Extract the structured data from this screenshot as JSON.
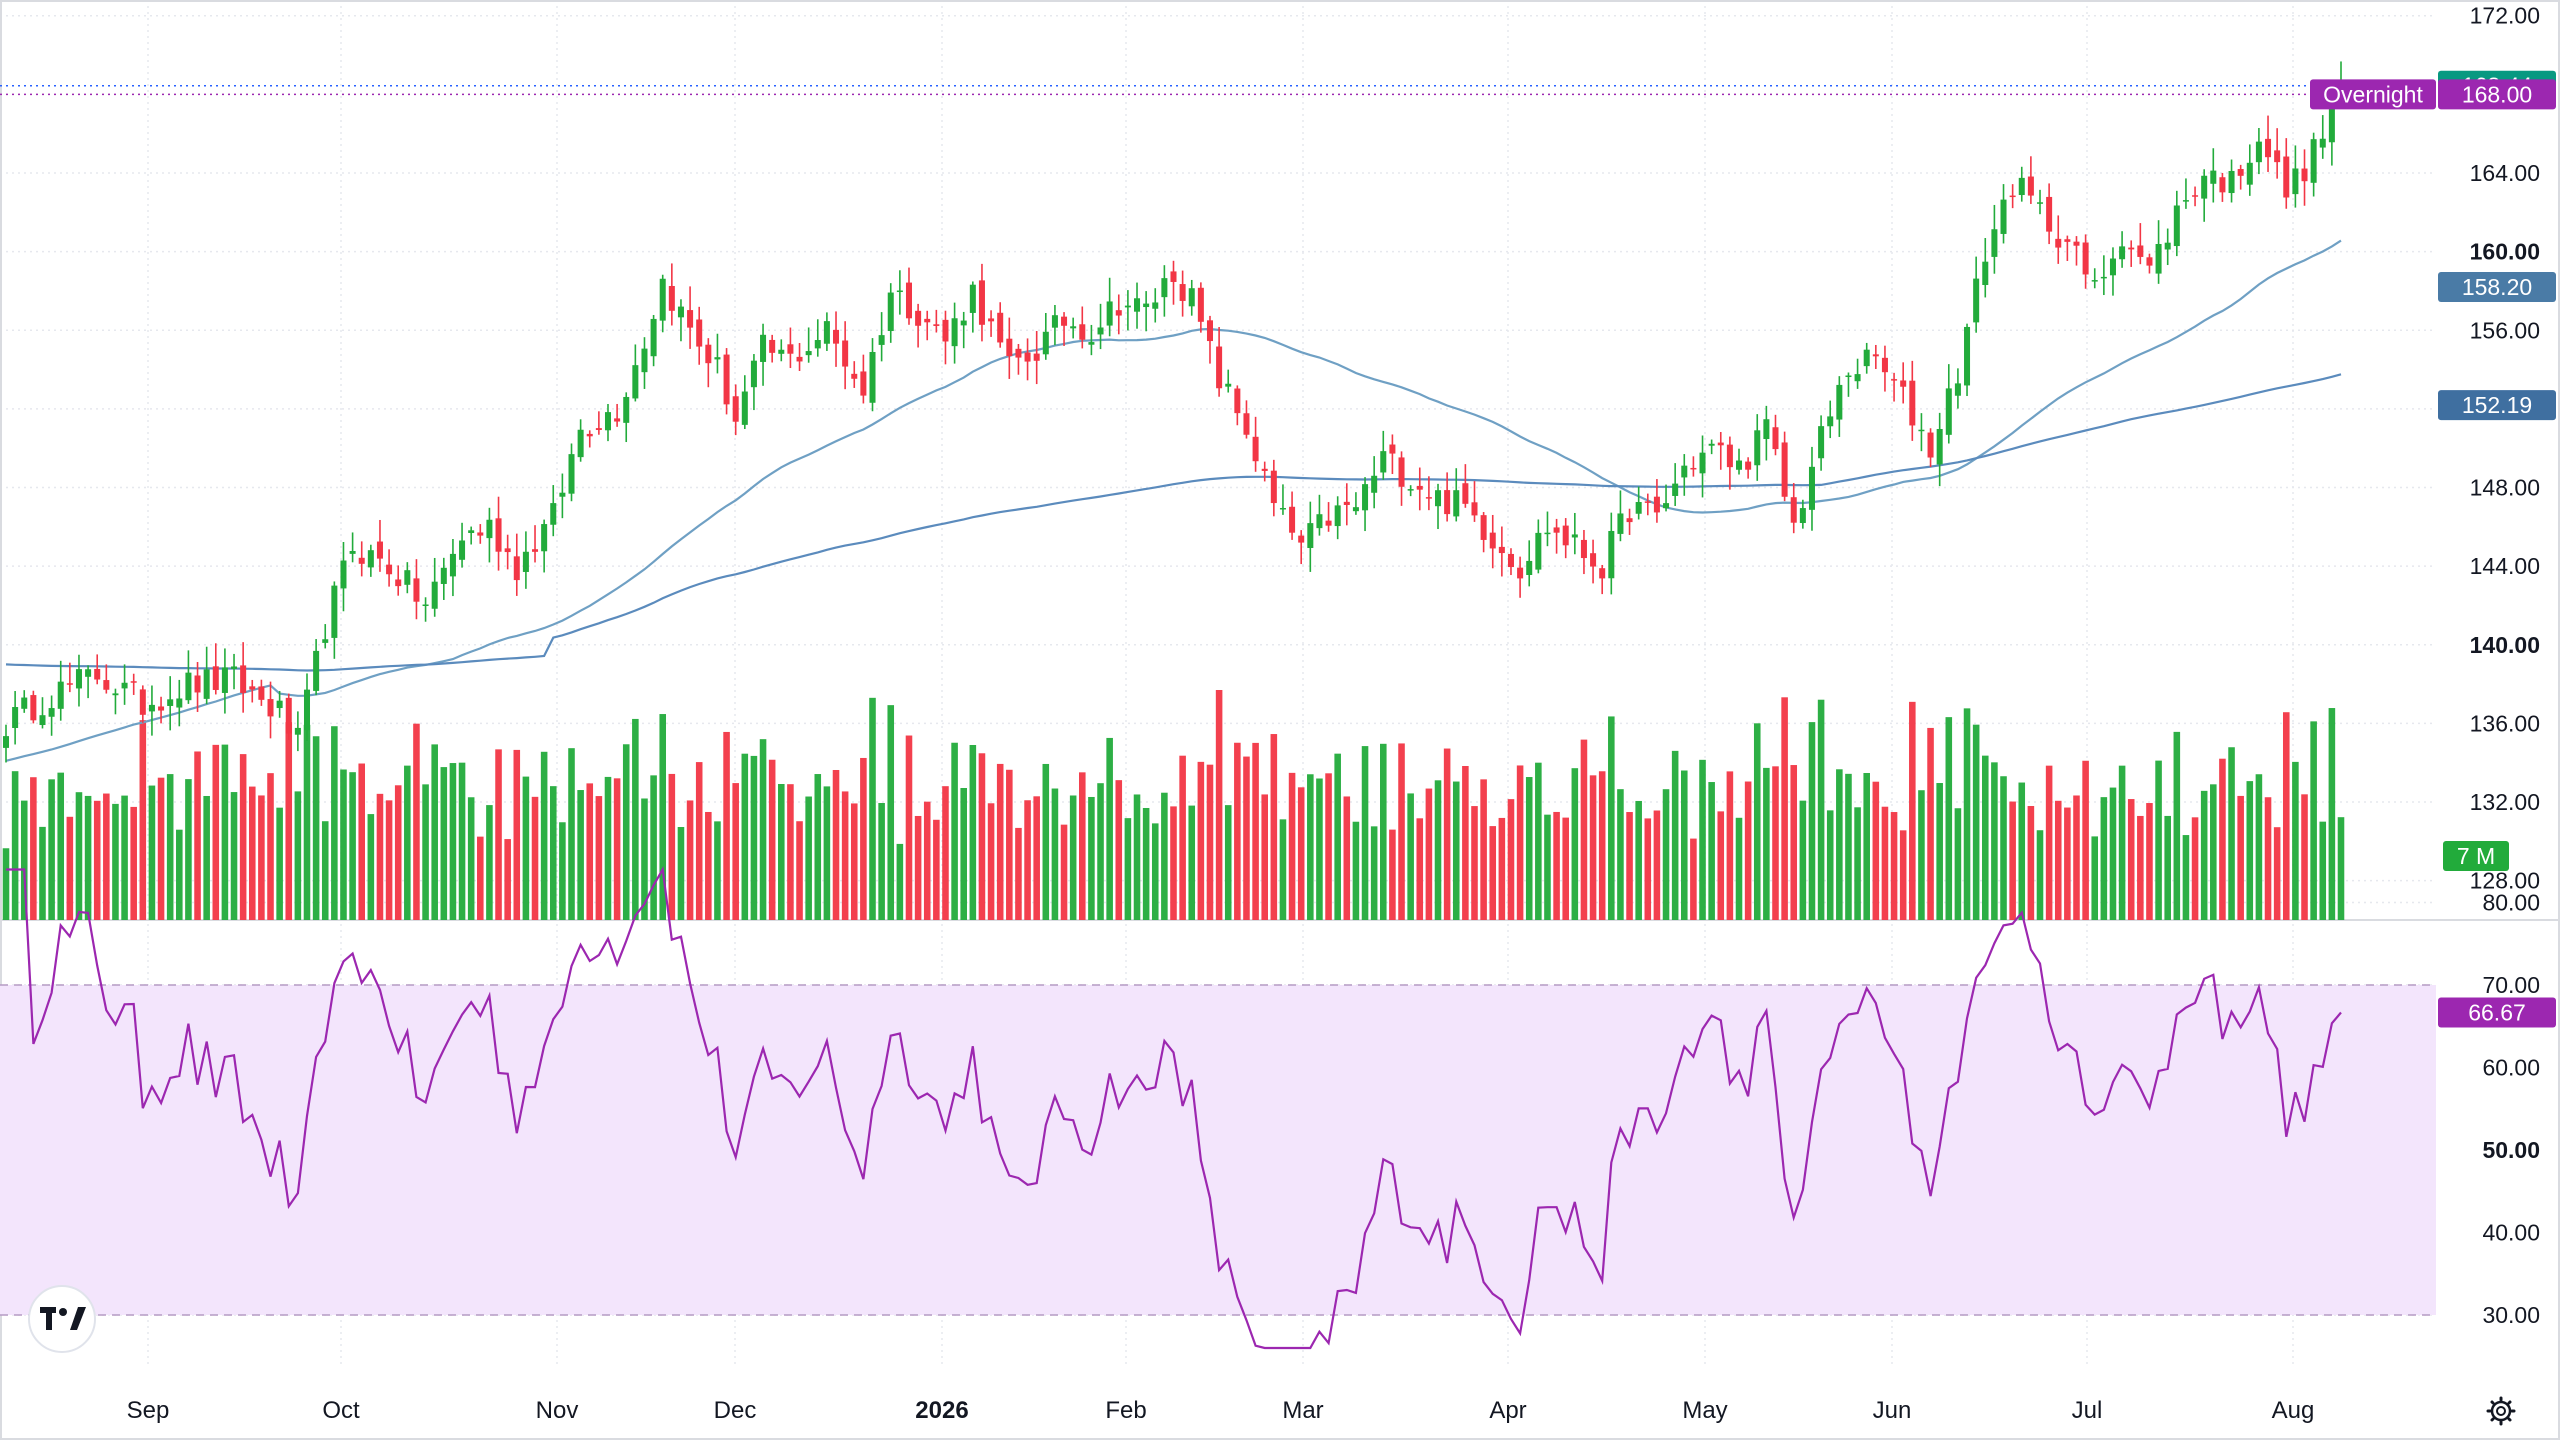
{
  "chart_data": {
    "type": "candlestick",
    "x_labels": [
      "Sep",
      "Oct",
      "Nov",
      "Dec",
      "2026",
      "Feb",
      "Mar",
      "Apr",
      "May",
      "Jun",
      "Jul",
      "Aug"
    ],
    "price_axis": {
      "range": [
        126.0,
        172.8
      ],
      "ticks": [
        "172.00",
        "164.00",
        "160.00",
        "156.00",
        "152.00",
        "148.00",
        "144.00",
        "140.00",
        "136.00",
        "132.00",
        "128.00"
      ],
      "bold_ticks": [
        "160.00",
        "140.00"
      ]
    },
    "last_price": {
      "value": "168.44",
      "color": "#089981"
    },
    "overnight": {
      "label": "Overnight",
      "value": "168.00",
      "color": "#9c27b0"
    },
    "ma_fast": {
      "value": "158.20",
      "color": "#6fa0c4"
    },
    "ma_slow": {
      "value": "152.19",
      "color": "#5b8bbd"
    },
    "volume_label": {
      "value": "7 M",
      "color": "#22ab3b"
    },
    "rsi": {
      "range": [
        25,
        85
      ],
      "ticks": [
        "80.00",
        "70.00",
        "60.00",
        "50.00",
        "40.00",
        "30.00"
      ],
      "bold_ticks": [
        "50.00"
      ],
      "band_upper": 70,
      "band_lower": 30,
      "value": "66.67",
      "color": "#9c27b0"
    },
    "colors": {
      "up": "#22ab3b",
      "down": "#f23645",
      "band": "#f3e5fc",
      "grid": "#e6e8ee"
    },
    "close_anchors": [
      [
        0,
        136.0
      ],
      [
        5,
        137.5
      ],
      [
        10,
        138.5
      ],
      [
        15,
        137.0
      ],
      [
        20,
        138.0
      ],
      [
        25,
        138.2
      ],
      [
        30,
        136.5
      ],
      [
        32,
        135.0
      ],
      [
        35,
        141.0
      ],
      [
        38,
        145.0
      ],
      [
        42,
        144.0
      ],
      [
        46,
        142.0
      ],
      [
        50,
        145.5
      ],
      [
        53,
        146.0
      ],
      [
        56,
        144.0
      ],
      [
        60,
        146.5
      ],
      [
        63,
        151.0
      ],
      [
        67,
        152.0
      ],
      [
        70,
        155.5
      ],
      [
        72,
        158.5
      ],
      [
        75,
        156.0
      ],
      [
        78,
        154.0
      ],
      [
        80,
        151.5
      ],
      [
        83,
        155.0
      ],
      [
        86,
        154.5
      ],
      [
        90,
        156.0
      ],
      [
        94,
        153.0
      ],
      [
        97,
        158.0
      ],
      [
        100,
        157.0
      ],
      [
        103,
        155.5
      ],
      [
        106,
        158.0
      ],
      [
        110,
        154.0
      ],
      [
        113,
        155.0
      ],
      [
        116,
        156.5
      ],
      [
        119,
        156.0
      ],
      [
        122,
        157.5
      ],
      [
        125,
        157.0
      ],
      [
        128,
        159.0
      ],
      [
        130,
        157.5
      ],
      [
        133,
        153.5
      ],
      [
        136,
        151.0
      ],
      [
        139,
        147.0
      ],
      [
        142,
        145.0
      ],
      [
        145,
        146.5
      ],
      [
        148,
        147.0
      ],
      [
        151,
        149.5
      ],
      [
        154,
        148.5
      ],
      [
        157,
        147.5
      ],
      [
        160,
        147.0
      ],
      [
        163,
        145.5
      ],
      [
        166,
        144.0
      ],
      [
        169,
        146.0
      ],
      [
        172,
        145.0
      ],
      [
        175,
        144.0
      ],
      [
        178,
        147.0
      ],
      [
        181,
        146.5
      ],
      [
        184,
        149.0
      ],
      [
        187,
        150.0
      ],
      [
        190,
        149.0
      ],
      [
        193,
        151.0
      ],
      [
        196,
        146.0
      ],
      [
        199,
        150.5
      ],
      [
        202,
        154.0
      ],
      [
        205,
        154.5
      ],
      [
        208,
        152.5
      ],
      [
        211,
        150.0
      ],
      [
        214,
        154.0
      ],
      [
        217,
        160.0
      ],
      [
        220,
        163.5
      ],
      [
        223,
        162.0
      ],
      [
        226,
        160.5
      ],
      [
        229,
        158.0
      ],
      [
        232,
        161.0
      ],
      [
        235,
        159.0
      ],
      [
        238,
        162.0
      ],
      [
        241,
        164.0
      ],
      [
        244,
        163.5
      ],
      [
        247,
        166.0
      ],
      [
        250,
        163.0
      ],
      [
        253,
        165.0
      ],
      [
        256,
        168.44
      ]
    ]
  }
}
